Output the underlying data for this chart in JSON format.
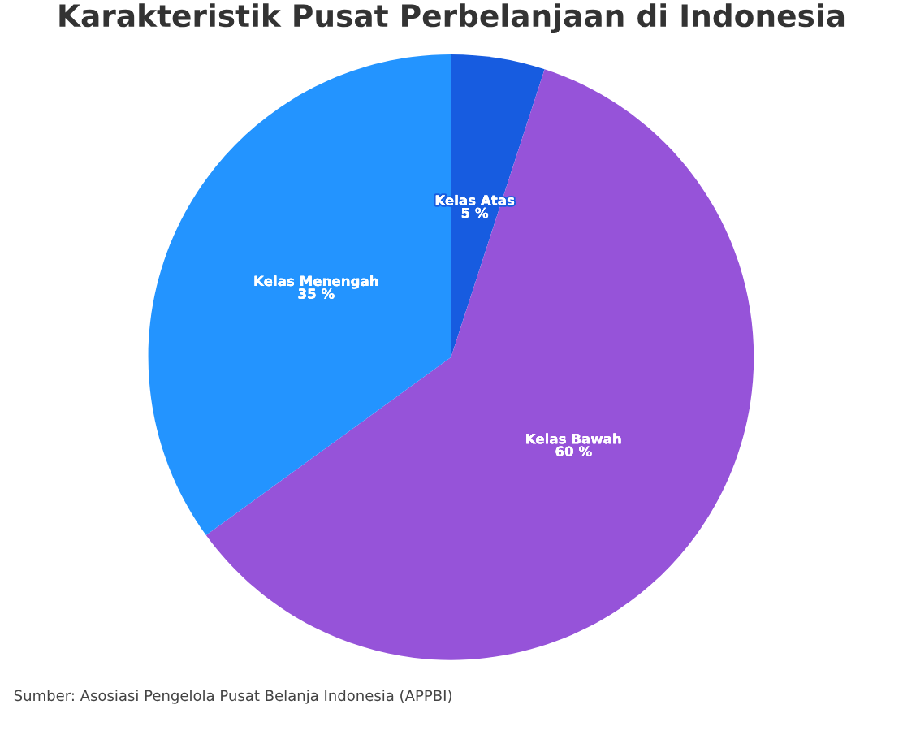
{
  "chart_data": {
    "type": "pie",
    "title": "Karakteristik Pusat Perbelanjaan di Indonesia",
    "categories": [
      "Kelas Atas",
      "Kelas Bawah",
      "Kelas Menengah"
    ],
    "values": [
      5,
      60,
      35
    ],
    "value_labels": [
      "5 %",
      "60 %",
      "35 %"
    ],
    "colors": [
      "#175ce0",
      "#9653d9",
      "#2394ff"
    ],
    "legend": false,
    "annotations": [
      "Sumber: Asosiasi Pengelola Pusat Belanja Indonesia (APPBI)"
    ]
  }
}
